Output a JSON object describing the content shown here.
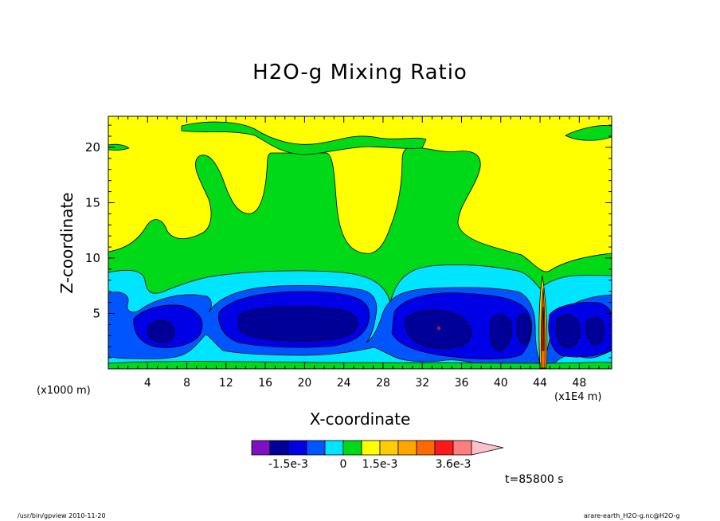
{
  "chart_data": {
    "type": "heatmap",
    "title": "H2O-g Mixing Ratio",
    "xlabel": "X-coordinate",
    "ylabel": "Z-coordinate",
    "x_unit_left": "(x1000 m)",
    "x_unit_right": "(x1E4 m)",
    "x_ticks": [
      "4",
      "8",
      "12",
      "16",
      "20",
      "24",
      "28",
      "32",
      "36",
      "40",
      "44",
      "48"
    ],
    "x_tick_values": [
      4,
      8,
      12,
      16,
      20,
      24,
      28,
      32,
      36,
      40,
      44,
      48
    ],
    "y_ticks": [
      "5",
      "10",
      "15",
      "20"
    ],
    "y_tick_values": [
      5,
      10,
      15,
      20
    ],
    "xlim": [
      0,
      51.3
    ],
    "ylim": [
      0,
      22.8
    ],
    "colorbar": {
      "colors": [
        "#7e0fc4",
        "#000099",
        "#0000e6",
        "#0055ff",
        "#00e5ff",
        "#00d917",
        "#ffff00",
        "#ffcc00",
        "#ffa500",
        "#ff6a00",
        "#ff1a1a",
        "#ff7d7d",
        "#ffc0cb"
      ],
      "labels": [
        "-1.5e-3",
        "0",
        "1.5e-3",
        "3.6e-3"
      ]
    },
    "time_label": "t=85800 s"
  },
  "footer": {
    "left": "/usr/bin/gpview  2010-11-20",
    "right": "arare-earth_H2O-g.nc@H2O-g"
  }
}
